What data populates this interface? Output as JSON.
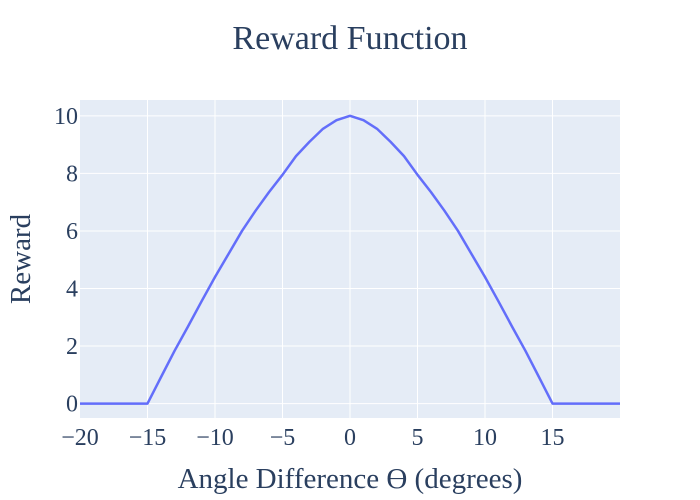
{
  "chart_data": {
    "type": "line",
    "title": "Reward Function",
    "xlabel": "Angle Difference ϴ (degrees)",
    "ylabel": "Reward",
    "xlim": [
      -20,
      20
    ],
    "ylim": [
      -0.5,
      10.55
    ],
    "x_ticks": [
      -20,
      -15,
      -10,
      -5,
      0,
      5,
      10,
      15
    ],
    "x_tick_labels": [
      "−20",
      "−15",
      "−10",
      "−5",
      "0",
      "5",
      "10",
      "15"
    ],
    "y_ticks": [
      0,
      2,
      4,
      6,
      8,
      10
    ],
    "y_tick_labels": [
      "0",
      "2",
      "4",
      "6",
      "8",
      "10"
    ],
    "grid": true,
    "series": [
      {
        "color": "#636efa",
        "x": [
          -20,
          -15,
          -14,
          -13,
          -12,
          -11,
          -10,
          -9,
          -8,
          -7,
          -6,
          -5,
          -4,
          -3,
          -2,
          -1,
          0,
          1,
          2,
          3,
          4,
          5,
          6,
          7,
          8,
          9,
          10,
          11,
          12,
          13,
          14,
          15,
          20
        ],
        "y": [
          0,
          0,
          0.92,
          1.83,
          2.68,
          3.55,
          4.4,
          5.2,
          6.0,
          6.7,
          7.35,
          7.95,
          8.6,
          9.1,
          9.55,
          9.85,
          10,
          9.85,
          9.55,
          9.1,
          8.6,
          7.95,
          7.35,
          6.7,
          6.0,
          5.2,
          4.4,
          3.55,
          2.68,
          1.83,
          0.92,
          0,
          0
        ]
      }
    ]
  },
  "colors": {
    "plot_bg": "#e5ecf6",
    "grid": "#ffffff",
    "text": "#2a3f5f",
    "line": "#636efa"
  }
}
